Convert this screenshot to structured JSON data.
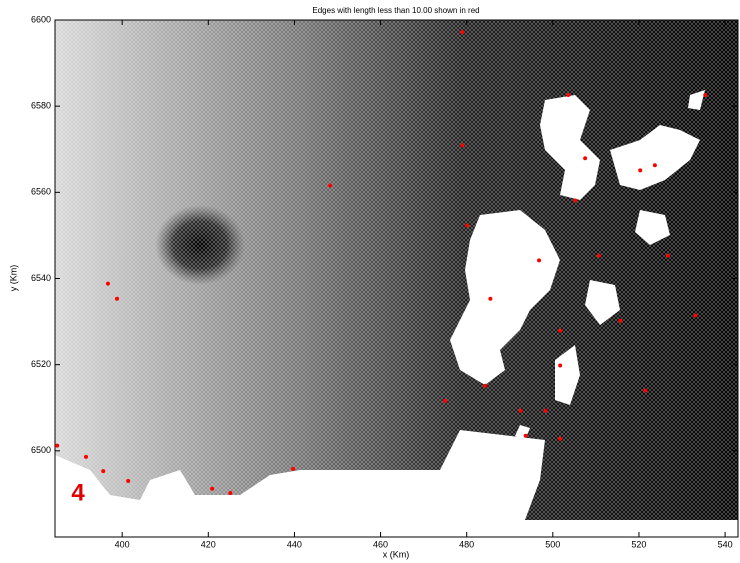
{
  "chart_data": {
    "type": "scatter",
    "title": "Edges with length less than 10.00 shown in red",
    "x_label": "x (Km)",
    "y_label": "y (Km)",
    "annotation": "4",
    "xlim": [
      384.4,
      543
    ],
    "ylim": [
      6480,
      6600
    ],
    "xticks": [
      400,
      420,
      440,
      460,
      480,
      500,
      520,
      540
    ],
    "yticks": [
      6500,
      6520,
      6540,
      6560,
      6580,
      6600
    ],
    "series": [
      {
        "color": "#ff0000",
        "x": [
          479.0,
          384.9,
          391.6,
          396.7,
          398.8,
          395.6,
          401.4,
          420.9,
          425.1,
          439.7,
          448.3,
          475.0,
          479.0,
          480.1,
          485.5,
          484.3,
          492.5,
          493.7,
          498.3,
          501.7,
          503.6,
          507.5,
          505.2,
          501.7,
          515.7,
          521.5,
          520.3,
          523.7,
          526.7,
          533.1,
          535.4,
          510.7,
          496.8,
          501.7
        ],
        "y": [
          6597.2,
          6501.2,
          6498.6,
          6538.8,
          6535.3,
          6495.3,
          6493.0,
          6491.2,
          6490.2,
          6495.8,
          6561.6,
          6511.6,
          6570.9,
          6552.3,
          6535.3,
          6515.1,
          6509.3,
          6503.5,
          6509.3,
          6502.8,
          6582.6,
          6567.9,
          6558.1,
          6527.9,
          6530.2,
          6514.0,
          6565.1,
          6566.3,
          6545.3,
          6531.4,
          6582.6,
          6545.3,
          6544.2,
          6519.8
        ]
      }
    ]
  }
}
